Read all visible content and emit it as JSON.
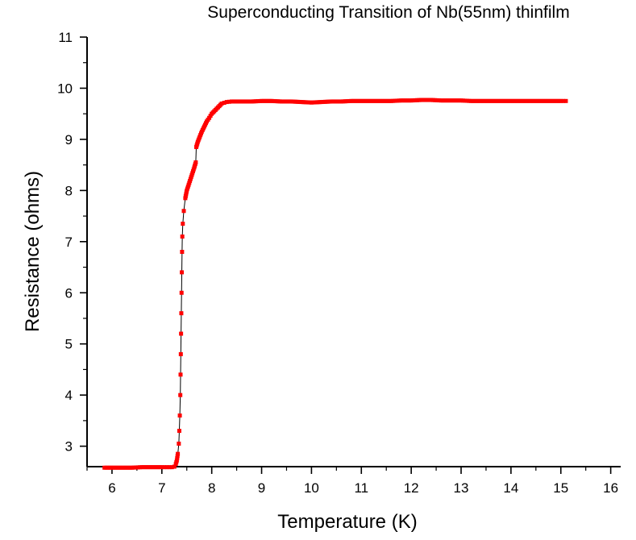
{
  "chart_data": {
    "type": "scatter",
    "title": "Superconducting Transition of Nb(55nm) thinfilm",
    "xlabel": "Temperature (K)",
    "ylabel": "Resistance (ohms)",
    "xlim": [
      5.5,
      16.2
    ],
    "ylim": [
      2.6,
      11
    ],
    "xticks": [
      6,
      7,
      8,
      9,
      10,
      11,
      12,
      13,
      14,
      15,
      16
    ],
    "yticks": [
      3,
      4,
      5,
      6,
      7,
      8,
      9,
      10,
      11
    ],
    "grid": false,
    "legend": "none",
    "series": [
      {
        "color": "#ff0000",
        "marker": "square",
        "points": [
          [
            5.85,
            2.58
          ],
          [
            6.0,
            2.58
          ],
          [
            6.2,
            2.58
          ],
          [
            6.4,
            2.58
          ],
          [
            6.6,
            2.59
          ],
          [
            6.8,
            2.59
          ],
          [
            7.0,
            2.59
          ],
          [
            7.1,
            2.59
          ],
          [
            7.2,
            2.59
          ],
          [
            7.25,
            2.6
          ],
          [
            7.28,
            2.65
          ],
          [
            7.3,
            2.72
          ],
          [
            7.32,
            2.85
          ],
          [
            7.34,
            3.05
          ],
          [
            7.35,
            3.3
          ],
          [
            7.36,
            3.6
          ],
          [
            7.37,
            4.0
          ],
          [
            7.375,
            4.4
          ],
          [
            7.38,
            4.8
          ],
          [
            7.385,
            5.2
          ],
          [
            7.39,
            5.6
          ],
          [
            7.395,
            6.0
          ],
          [
            7.4,
            6.4
          ],
          [
            7.405,
            6.8
          ],
          [
            7.41,
            7.1
          ],
          [
            7.42,
            7.35
          ],
          [
            7.44,
            7.6
          ],
          [
            7.47,
            7.85
          ],
          [
            7.5,
            8.0
          ],
          [
            7.55,
            8.15
          ],
          [
            7.6,
            8.3
          ],
          [
            7.65,
            8.45
          ],
          [
            7.68,
            8.55
          ],
          [
            7.69,
            8.85
          ],
          [
            7.72,
            8.95
          ],
          [
            7.76,
            9.05
          ],
          [
            7.8,
            9.15
          ],
          [
            7.85,
            9.25
          ],
          [
            7.9,
            9.35
          ],
          [
            7.95,
            9.42
          ],
          [
            8.0,
            9.5
          ],
          [
            8.05,
            9.55
          ],
          [
            8.1,
            9.6
          ],
          [
            8.15,
            9.65
          ],
          [
            8.2,
            9.7
          ],
          [
            8.3,
            9.73
          ],
          [
            8.4,
            9.74
          ],
          [
            8.6,
            9.74
          ],
          [
            8.8,
            9.74
          ],
          [
            9.0,
            9.75
          ],
          [
            9.2,
            9.75
          ],
          [
            9.4,
            9.74
          ],
          [
            9.6,
            9.74
          ],
          [
            9.8,
            9.73
          ],
          [
            10.0,
            9.72
          ],
          [
            10.2,
            9.73
          ],
          [
            10.4,
            9.74
          ],
          [
            10.6,
            9.74
          ],
          [
            10.8,
            9.75
          ],
          [
            11.0,
            9.75
          ],
          [
            11.2,
            9.75
          ],
          [
            11.4,
            9.75
          ],
          [
            11.6,
            9.75
          ],
          [
            11.8,
            9.76
          ],
          [
            12.0,
            9.76
          ],
          [
            12.2,
            9.77
          ],
          [
            12.4,
            9.77
          ],
          [
            12.6,
            9.76
          ],
          [
            12.8,
            9.76
          ],
          [
            13.0,
            9.76
          ],
          [
            13.2,
            9.75
          ],
          [
            13.4,
            9.75
          ],
          [
            13.6,
            9.75
          ],
          [
            13.8,
            9.75
          ],
          [
            14.0,
            9.75
          ],
          [
            14.2,
            9.75
          ],
          [
            14.4,
            9.75
          ],
          [
            14.6,
            9.75
          ],
          [
            14.8,
            9.75
          ],
          [
            15.0,
            9.75
          ],
          [
            15.1,
            9.75
          ]
        ]
      }
    ]
  }
}
